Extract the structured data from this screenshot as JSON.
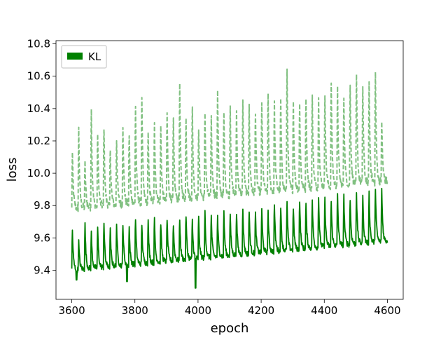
{
  "chart_data": {
    "type": "line",
    "title": "",
    "xlabel": "epoch",
    "ylabel": "loss",
    "xlim": [
      3550,
      4650
    ],
    "ylim": [
      9.22,
      10.82
    ],
    "xticks": [
      3600,
      3800,
      4000,
      4200,
      4400,
      4600
    ],
    "yticks": [
      9.4,
      9.6,
      9.8,
      10.0,
      10.2,
      10.4,
      10.6,
      10.8
    ],
    "grid": false,
    "legend": {
      "placement": "top-left",
      "entries": [
        "KL"
      ]
    },
    "series_style": {
      "solid_color": "#008000",
      "dashed_color": "#80c080"
    },
    "peak_period_epochs": 20,
    "series": [
      {
        "name": "KL",
        "style": "solid",
        "x_start": 3600,
        "x_end": 4600,
        "baseline_start": 9.4,
        "baseline_end": 9.58,
        "peaks": [
          9.68,
          9.6,
          9.72,
          9.66,
          9.7,
          9.74,
          9.68,
          9.72,
          9.73,
          9.7,
          9.76,
          9.72,
          9.74,
          9.75,
          9.73,
          9.76,
          9.72,
          9.75,
          9.78,
          9.74,
          9.76,
          9.8,
          9.77,
          9.76,
          9.79,
          9.78,
          9.8,
          9.82,
          9.8,
          9.78,
          9.82,
          9.8,
          9.85,
          9.84,
          9.86,
          9.82,
          9.88,
          9.85,
          9.87,
          9.9,
          9.88,
          9.86,
          9.92,
          9.9,
          9.88,
          9.93,
          9.9,
          9.92,
          9.96,
          9.95
        ],
        "notable_lows": [
          {
            "x": 3992,
            "y": 9.29
          },
          {
            "x": 3775,
            "y": 9.33
          },
          {
            "x": 3615,
            "y": 9.34
          }
        ]
      },
      {
        "name": "",
        "style": "dashed",
        "x_start": 3600,
        "x_end": 4600,
        "baseline_start": 9.78,
        "baseline_end": 9.95,
        "peaks": [
          10.17,
          10.34,
          10.1,
          10.47,
          10.32,
          10.36,
          10.2,
          10.27,
          10.37,
          10.3,
          10.5,
          10.57,
          10.3,
          10.4,
          10.35,
          10.45,
          10.4,
          10.63,
          10.4,
          10.47,
          10.35,
          10.45,
          10.42,
          10.62,
          10.45,
          10.5,
          10.45,
          10.53,
          10.48,
          10.46,
          10.52,
          10.58,
          10.5,
          10.54,
          10.74,
          10.52,
          10.5,
          10.56,
          10.55,
          10.53,
          10.58,
          10.66,
          10.6,
          10.55,
          10.62,
          10.7,
          10.62,
          10.65,
          10.71,
          10.38
        ]
      }
    ]
  }
}
